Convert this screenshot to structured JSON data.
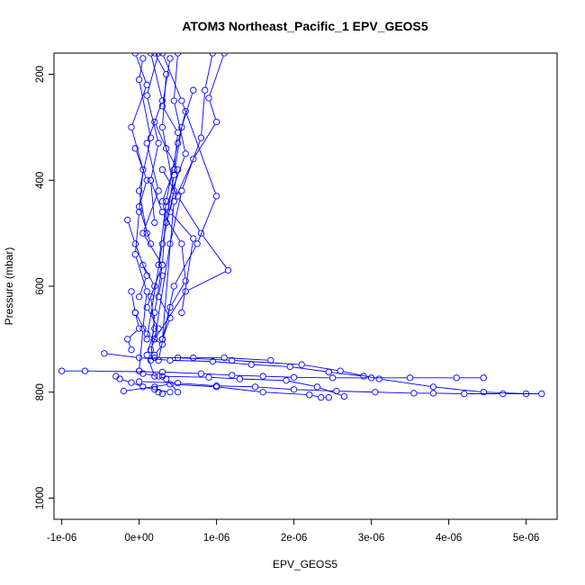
{
  "chart_data": {
    "type": "line",
    "title": "ATOM3 Northeast_Pacific_1 EPV_GEOS5",
    "xlabel": "EPV_GEOS5",
    "ylabel": "Pressure (mbar)",
    "xlim": [
      -1.1e-06,
      5.4e-06
    ],
    "ylim": [
      1040,
      160
    ],
    "y_reversed": true,
    "grid": false,
    "legend": "none",
    "marker": "open-circle",
    "color": "#0000ff",
    "x_ticks": [
      {
        "value": -1e-06,
        "label": "-1e-06"
      },
      {
        "value": 0,
        "label": "0e+00"
      },
      {
        "value": 1e-06,
        "label": "1e-06"
      },
      {
        "value": 2e-06,
        "label": "2e-06"
      },
      {
        "value": 3e-06,
        "label": "3e-06"
      },
      {
        "value": 4e-06,
        "label": "4e-06"
      },
      {
        "value": 5e-06,
        "label": "5e-06"
      }
    ],
    "y_ticks": [
      {
        "value": 200,
        "label": "200"
      },
      {
        "value": 400,
        "label": "400"
      },
      {
        "value": 600,
        "label": "600"
      },
      {
        "value": 800,
        "label": "800"
      },
      {
        "value": 1000,
        "label": "1000"
      }
    ],
    "series": [
      {
        "x": [
          -1e-06,
          -7e-07,
          3e-07,
          8e-07,
          1.2e-06,
          1.6e-06,
          2e-06,
          2.5e-06,
          3e-06,
          3.5e-06,
          4.1e-06,
          4.45e-06
        ],
        "y": [
          760,
          760,
          762,
          765,
          768,
          770,
          772,
          773,
          773,
          773,
          773,
          773
        ]
      },
      {
        "x": [
          0.0,
          5e-07,
          1e-06,
          1.5e-06,
          2e-06,
          2.55e-06,
          3.05e-06,
          3.55e-06,
          3.8e-06,
          4.2e-06,
          4.7e-06,
          5.2e-06
        ],
        "y": [
          780,
          783,
          788,
          790,
          795,
          798,
          800,
          802,
          802,
          803,
          803,
          803
        ]
      },
      {
        "x": [
          -2e-07,
          4e-07,
          1e-06,
          1.6e-06,
          2.2e-06,
          2.35e-06,
          2.45e-06
        ],
        "y": [
          798,
          785,
          790,
          800,
          805,
          810,
          810
        ]
      },
      {
        "x": [
          -4.5e-07,
          0.0,
          4e-07,
          9.5e-07,
          1.45e-06,
          1.95e-06,
          2.45e-06,
          2.9e-06
        ],
        "y": [
          727,
          735,
          740,
          742,
          748,
          752,
          762,
          770
        ]
      },
      {
        "x": [
          3e-07,
          9e-07,
          1.3e-06,
          1.9e-06,
          2.3e-06,
          2.65e-06
        ],
        "y": [
          770,
          772,
          775,
          778,
          790,
          808
        ]
      },
      {
        "x": [
          5e-07,
          1.2e-06,
          2.1e-06,
          2.6e-06,
          3.1e-06,
          3.8e-06,
          4.45e-06,
          5e-06
        ],
        "y": [
          735,
          740,
          748,
          760,
          775,
          790,
          800,
          803
        ]
      },
      {
        "x": [
          2e-07,
          7e-07,
          1.1e-06,
          1.7e-06
        ],
        "y": [
          735,
          735,
          735,
          740
        ]
      },
      {
        "x": [
          1.5e-07,
          3e-07,
          1e-07,
          2.5e-07,
          5e-08,
          3e-07,
          1.5e-07,
          2e-07,
          1e-07,
          2e-07
        ],
        "y": [
          160,
          250,
          330,
          420,
          500,
          560,
          620,
          680,
          730,
          770
        ]
      },
      {
        "x": [
          -5e-08,
          1e-07,
          -1e-07,
          5e-08,
          0.0,
          -5e-08,
          1e-07,
          5e-08,
          0.0
        ],
        "y": [
          160,
          220,
          300,
          380,
          460,
          540,
          610,
          680,
          760
        ]
      },
      {
        "x": [
          5e-07,
          4.5e-07,
          6e-07,
          3.5e-07,
          3e-07,
          2e-07,
          1.5e-07
        ],
        "y": [
          160,
          250,
          350,
          450,
          560,
          650,
          740
        ]
      },
      {
        "x": [
          9.5e-07,
          8.5e-07,
          8e-07,
          5.5e-07,
          4e-07,
          2e-07
        ],
        "y": [
          160,
          230,
          320,
          420,
          520,
          700
        ]
      },
      {
        "x": [
          1.1e-06,
          9e-07,
          1e-06,
          7e-07,
          4.5e-07,
          3e-07
        ],
        "y": [
          160,
          245,
          290,
          360,
          440,
          700
        ]
      },
      {
        "x": [
          3e-07,
          5.5e-07,
          1e-06,
          7.5e-07,
          4.5e-07,
          2.5e-07
        ],
        "y": [
          160,
          250,
          430,
          520,
          600,
          740
        ]
      },
      {
        "x": [
          2e-07,
          3.5e-07,
          3e-07,
          4.5e-07,
          3e-07,
          1e-07
        ],
        "y": [
          160,
          200,
          300,
          420,
          520,
          700
        ]
      },
      {
        "x": [
          5e-08,
          0.0,
          1.5e-07,
          0.0,
          1e-07
        ],
        "y": [
          170,
          210,
          320,
          420,
          500
        ]
      },
      {
        "x": [
          2.5e-07,
          1e-07,
          2.5e-07,
          1.5e-07,
          2e-07
        ],
        "y": [
          160,
          240,
          330,
          400,
          480
        ]
      },
      {
        "x": [
          4e-07,
          3e-07,
          5e-07,
          4.5e-07,
          3e-07
        ],
        "y": [
          170,
          260,
          310,
          380,
          440
        ]
      },
      {
        "x": [
          2e-07,
          3.5e-07,
          5e-07,
          4e-07,
          7e-07,
          5.5e-07
        ],
        "y": [
          290,
          340,
          380,
          460,
          510,
          650
        ]
      },
      {
        "x": [
          3e-07,
          5e-07,
          8e-07,
          1.15e-06,
          6e-07,
          2e-07
        ],
        "y": [
          380,
          430,
          500,
          570,
          610,
          700
        ]
      },
      {
        "x": [
          1.5e-07,
          3e-07,
          5.5e-07,
          6e-07,
          4e-07,
          3e-07
        ],
        "y": [
          400,
          460,
          520,
          590,
          640,
          700
        ]
      },
      {
        "x": [
          -1.5e-07,
          -5e-08,
          1e-07,
          0.0
        ],
        "y": [
          475,
          520,
          580,
          620
        ]
      },
      {
        "x": [
          -1e-07,
          -5e-08,
          0.0,
          -1.5e-07,
          -1e-07
        ],
        "y": [
          610,
          650,
          680,
          700,
          720
        ]
      },
      {
        "x": [
          5e-08,
          2e-07,
          1e-07,
          2.5e-07,
          1.5e-07
        ],
        "y": [
          560,
          600,
          640,
          680,
          720
        ]
      },
      {
        "x": [
          3e-07,
          2.5e-07,
          4e-07,
          3e-07
        ],
        "y": [
          580,
          620,
          660,
          700
        ]
      },
      {
        "x": [
          -5e-08,
          1e-07,
          3e-07,
          2e-07
        ],
        "y": [
          650,
          690,
          710,
          730
        ]
      },
      {
        "x": [
          0.0,
          5e-08,
          2.5e-07,
          3.5e-07,
          5e-07
        ],
        "y": [
          760,
          765,
          770,
          775,
          800
        ]
      },
      {
        "x": [
          -3e-07,
          -2.5e-07,
          -1e-07,
          5e-08,
          2e-07,
          4e-07
        ],
        "y": [
          770,
          775,
          782,
          790,
          795,
          800
        ]
      },
      {
        "x": [
          2e-07,
          2.5e-07,
          3e-07
        ],
        "y": [
          790,
          800,
          803
        ]
      },
      {
        "x": [
          6e-07,
          5e-07,
          3.5e-07,
          2.5e-07
        ],
        "y": [
          270,
          330,
          440,
          560
        ]
      },
      {
        "x": [
          7e-07,
          5.5e-07,
          4.5e-07,
          3.5e-07
        ],
        "y": [
          230,
          300,
          390,
          480
        ]
      },
      {
        "x": [
          -5e-08,
          1e-07,
          0.0,
          1.5e-07
        ],
        "y": [
          340,
          400,
          450,
          520
        ]
      }
    ]
  }
}
